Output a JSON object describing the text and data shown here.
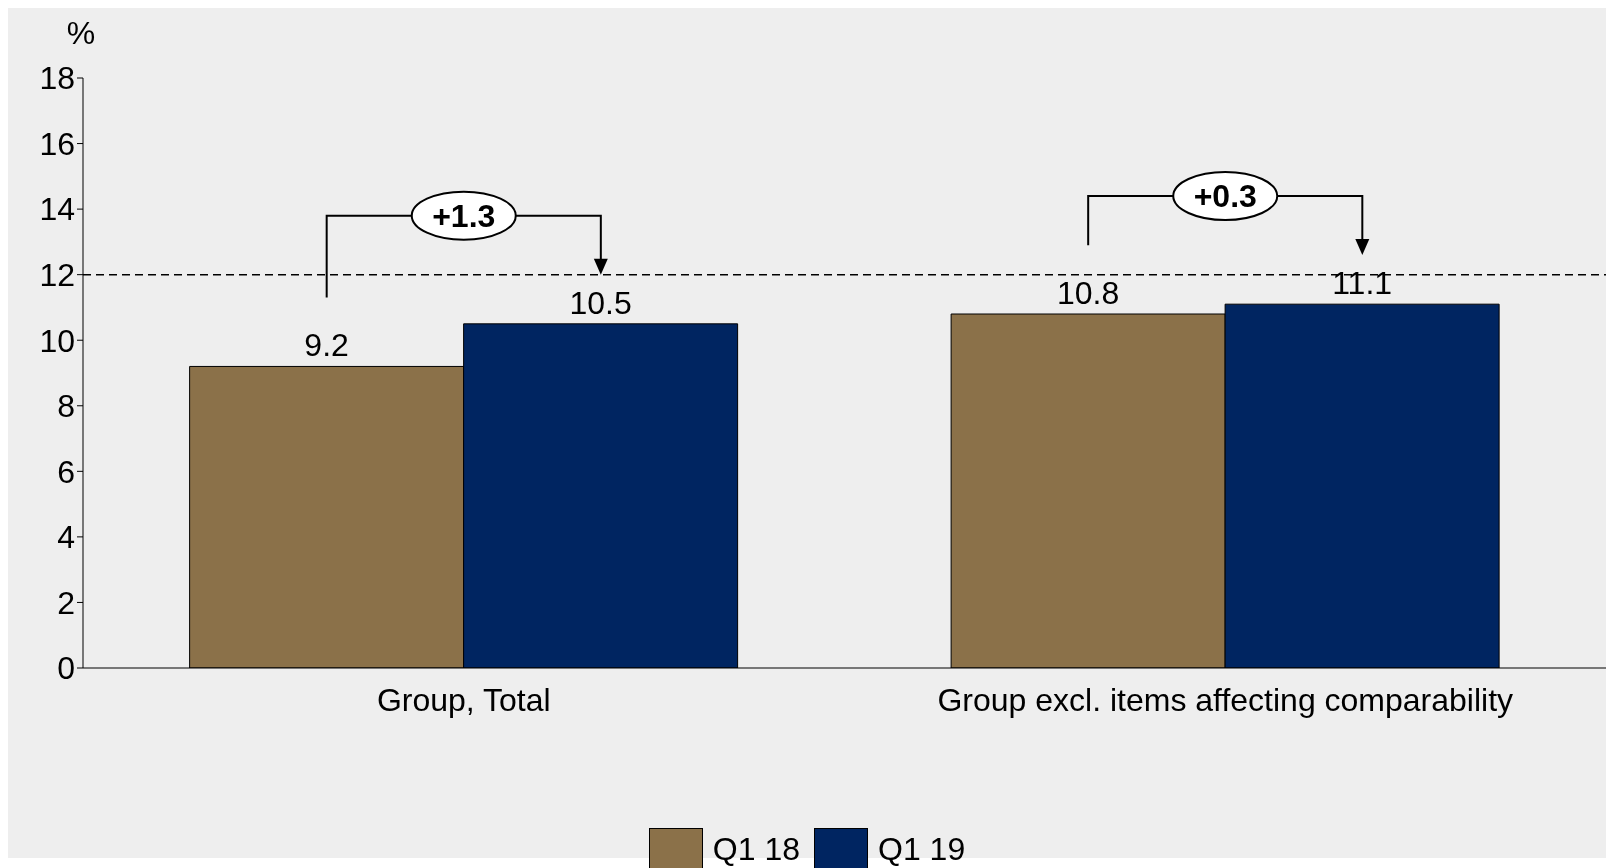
{
  "chart_data": {
    "type": "bar",
    "ylabel": "%",
    "categories": [
      "Group, Total",
      "Group excl. items affecting comparability"
    ],
    "series": [
      {
        "name": "Q1 18",
        "color": "#8b7149",
        "values": [
          9.2,
          10.8
        ]
      },
      {
        "name": "Q1 19",
        "color": "#002561",
        "values": [
          10.5,
          11.1
        ]
      }
    ],
    "ylim": [
      0,
      18
    ],
    "yticks": [
      0,
      2,
      4,
      6,
      8,
      10,
      12,
      14,
      16,
      18
    ],
    "grid": false,
    "legend": "bottom",
    "data_labels": true,
    "ref_lines": [
      {
        "axis": "y",
        "value": 12,
        "line_style": "dashed",
        "color": "#000000"
      }
    ],
    "annotations": [
      "+1.3",
      "+0.3"
    ]
  }
}
